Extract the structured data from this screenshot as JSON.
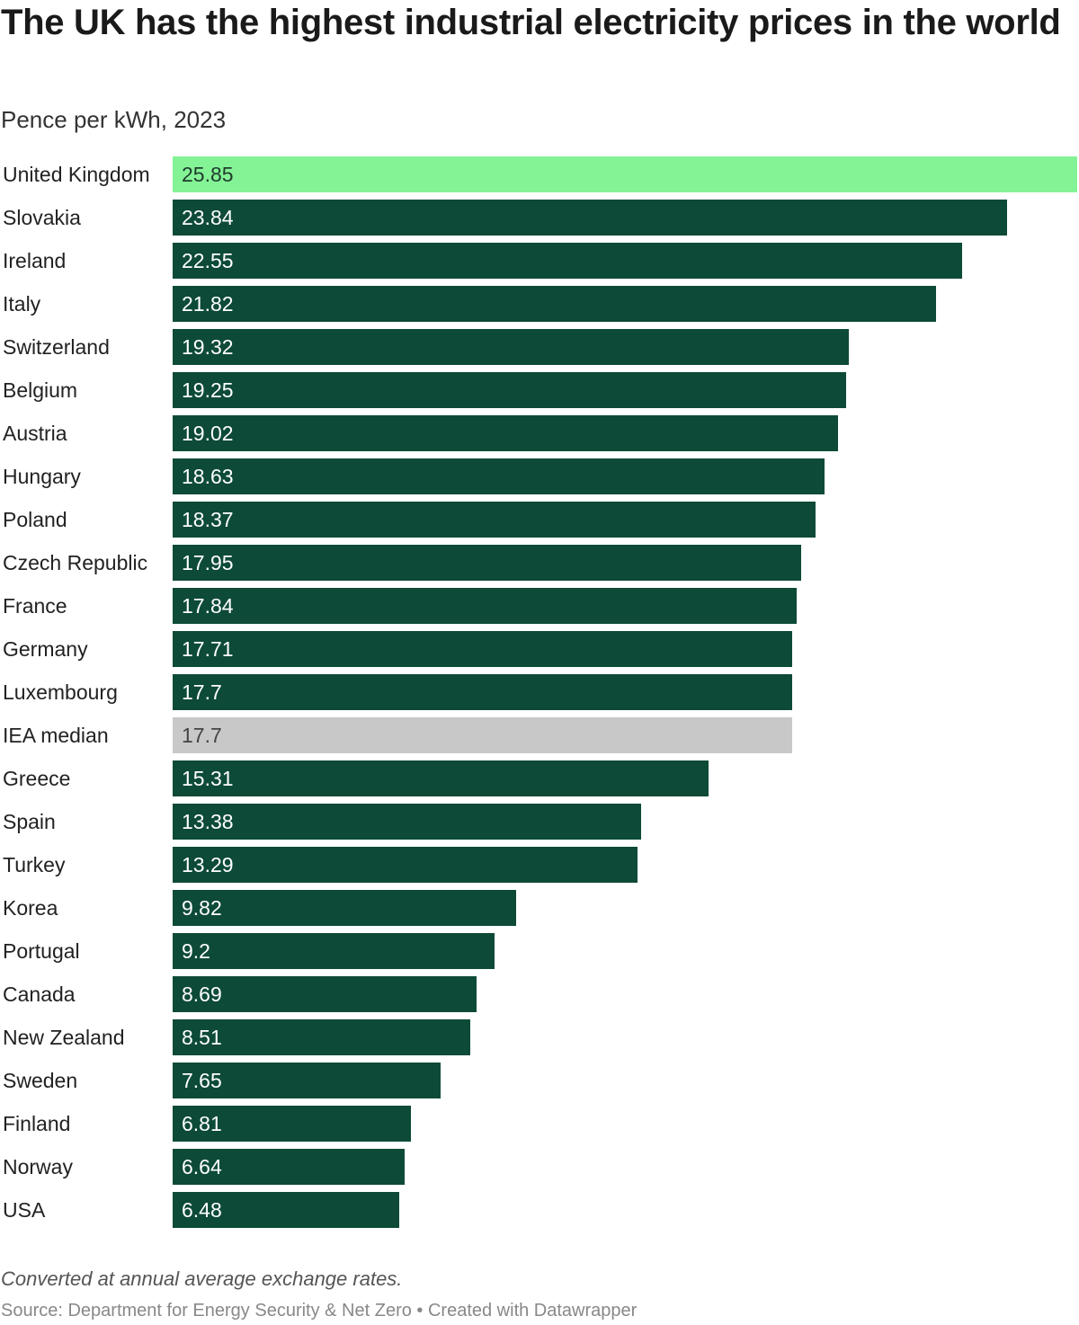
{
  "chart_data": {
    "type": "bar",
    "orientation": "horizontal",
    "title": "The UK has the highest industrial electricity prices in the world",
    "subtitle": "Pence per kWh, 2023",
    "categories": [
      "United Kingdom",
      "Slovakia",
      "Ireland",
      "Italy",
      "Switzerland",
      "Belgium",
      "Austria",
      "Hungary",
      "Poland",
      "Czech Republic",
      "France",
      "Germany",
      "Luxembourg",
      "IEA median",
      "Greece",
      "Spain",
      "Turkey",
      "Korea",
      "Portugal",
      "Canada",
      "New Zealand",
      "Sweden",
      "Finland",
      "Norway",
      "USA"
    ],
    "values": [
      25.85,
      23.84,
      22.55,
      21.82,
      19.32,
      19.25,
      19.02,
      18.63,
      18.37,
      17.95,
      17.84,
      17.71,
      17.7,
      17.7,
      15.31,
      13.38,
      13.29,
      9.82,
      9.2,
      8.69,
      8.51,
      7.65,
      6.81,
      6.64,
      6.48
    ],
    "value_labels": [
      "25.85",
      "23.84",
      "22.55",
      "21.82",
      "19.32",
      "19.25",
      "19.02",
      "18.63",
      "18.37",
      "17.95",
      "17.84",
      "17.71",
      "17.7",
      "17.7",
      "15.31",
      "13.38",
      "13.29",
      "9.82",
      "9.2",
      "8.69",
      "8.51",
      "7.65",
      "6.81",
      "6.64",
      "6.48"
    ],
    "xlim": [
      0,
      25.85
    ],
    "grid": false,
    "colors": {
      "highlight": "#84f396",
      "default": "#0d4a38",
      "median": "#c8c8c8"
    },
    "highlight_category": "United Kingdom",
    "median_category": "IEA median"
  },
  "footer": {
    "note": "Converted at annual average exchange rates.",
    "source": "Source: Department for Energy Security & Net Zero • Created with Datawrapper"
  }
}
